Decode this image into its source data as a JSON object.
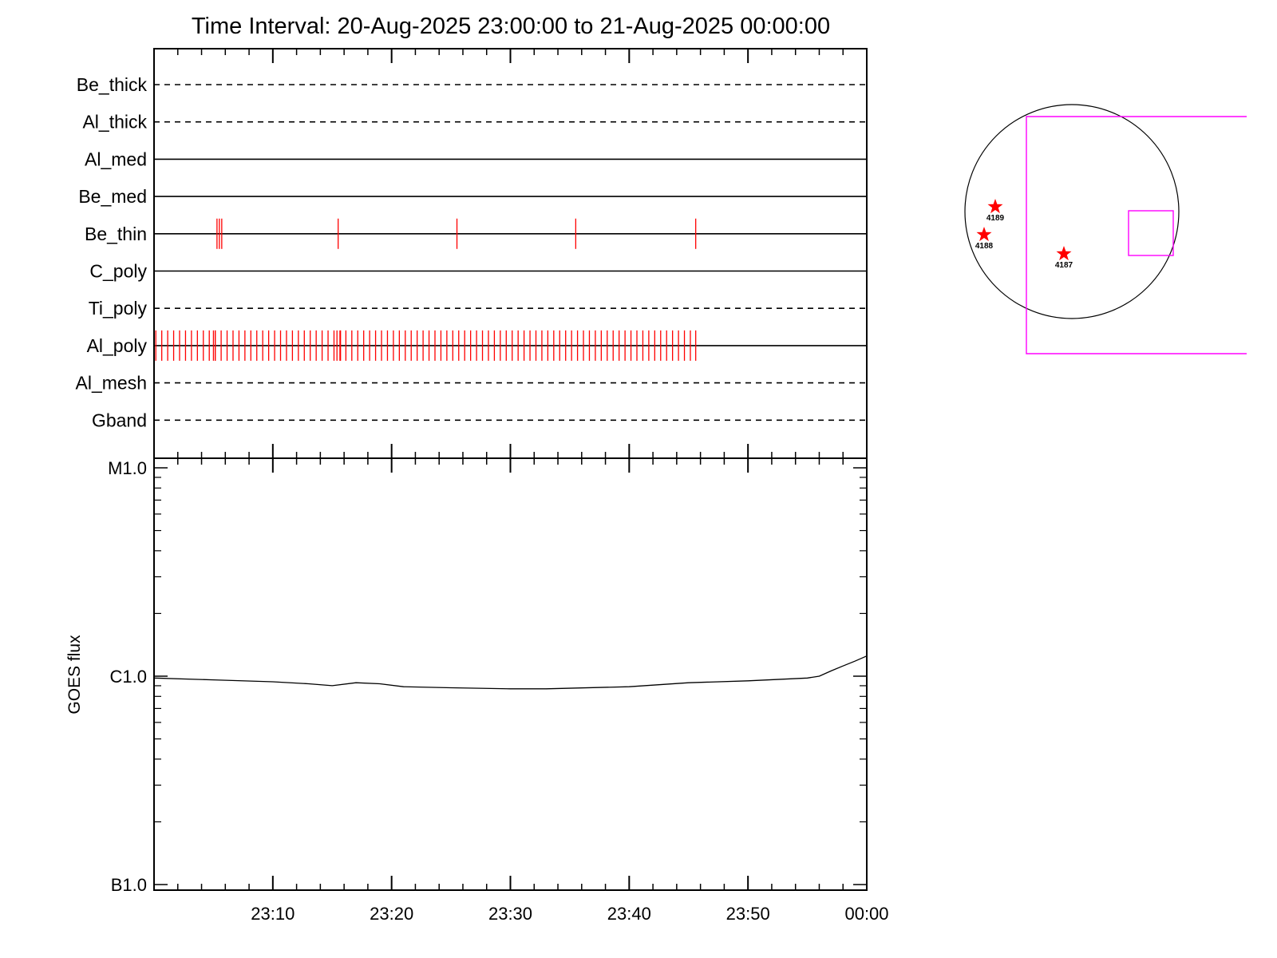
{
  "chart_data": [
    {
      "type": "timeline",
      "title": "Time Interval: 20-Aug-2025 23:00:00 to 21-Aug-2025 00:00:00",
      "x_range": [
        "23:00",
        "00:00"
      ],
      "filters": [
        {
          "name": "Be_thick",
          "style": "dashed",
          "exposures": []
        },
        {
          "name": "Al_thick",
          "style": "dashed",
          "exposures": []
        },
        {
          "name": "Al_med",
          "style": "solid",
          "exposures": []
        },
        {
          "name": "Be_med",
          "style": "solid",
          "exposures": []
        },
        {
          "name": "Be_thin",
          "style": "solid",
          "exposures": [
            5.3,
            5.5,
            5.7,
            15.5,
            25.5,
            35.5,
            45.6
          ]
        },
        {
          "name": "C_poly",
          "style": "solid",
          "exposures": []
        },
        {
          "name": "Ti_poly",
          "style": "dashed",
          "exposures": []
        },
        {
          "name": "Al_poly",
          "style": "solid",
          "exposures_regular": {
            "start": 0.15,
            "end": 45.6,
            "step": 0.5
          },
          "exposures_extra": [
            5.0,
            5.15,
            15.4,
            15.7,
            45.6
          ]
        },
        {
          "name": "Al_mesh",
          "style": "dashed",
          "exposures": []
        },
        {
          "name": "Gband",
          "style": "dashed",
          "exposures": []
        }
      ],
      "exposure_color": "#ff0000"
    },
    {
      "type": "line",
      "ylabel": "GOES flux",
      "yscale": "log",
      "ylim": [
        1e-07,
        1e-05
      ],
      "y_tick_labels": [
        "M1.0",
        "C1.0",
        "B1.0"
      ],
      "x_tick_labels": [
        "23:10",
        "23:20",
        "23:30",
        "23:40",
        "23:50",
        "00:00"
      ],
      "series": [
        {
          "x": [
            0,
            5,
            10,
            13,
            15,
            17,
            19,
            21,
            25,
            30,
            33,
            40,
            45,
            50,
            55,
            56,
            57,
            58,
            59,
            60
          ],
          "y": [
            9.8e-07,
            9.6e-07,
            9.4e-07,
            9.2e-07,
            9e-07,
            9.3e-07,
            9.2e-07,
            8.9e-07,
            8.8e-07,
            8.7e-07,
            8.7e-07,
            8.9e-07,
            9.3e-07,
            9.5e-07,
            9.8e-07,
            1e-06,
            1.06e-06,
            1.12e-06,
            1.18e-06,
            1.25e-06
          ],
          "color": "#000000"
        }
      ]
    }
  ],
  "locator": {
    "disk_color": "#000000",
    "box_color": "#ff00ff",
    "regions": [
      {
        "label": "4189",
        "color": "#ff0000"
      },
      {
        "label": "4188",
        "color": "#ff0000"
      },
      {
        "label": "4187",
        "color": "#ff0000"
      }
    ]
  }
}
